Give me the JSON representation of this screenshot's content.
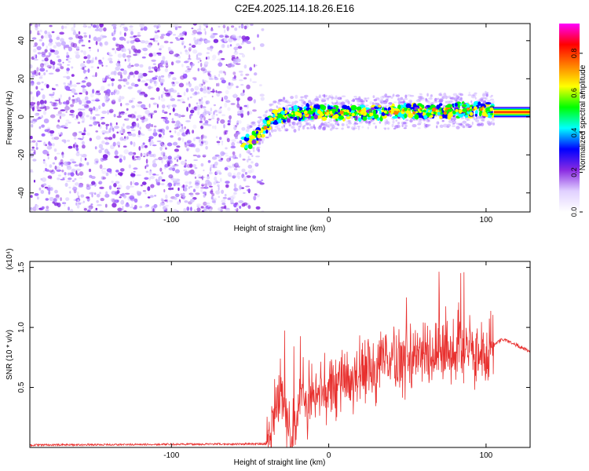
{
  "title": "C2E4.2025.114.18.26.E16",
  "chart_data": [
    {
      "type": "heatmap",
      "xlabel": "Height of straight line (km)",
      "ylabel": "Frequency (Hz)",
      "xlim": [
        -190,
        128
      ],
      "ylim": [
        -50,
        49
      ],
      "xticks": [
        -100,
        0,
        100
      ],
      "yticks": [
        -40,
        -20,
        0,
        20,
        40
      ],
      "colorbar": {
        "label": "Normalized spectral amplitude",
        "range": [
          0,
          0.95
        ],
        "ticks": [
          "0.0",
          "0.2",
          "0.4",
          "0.6",
          "0.8"
        ],
        "colors": [
          "#ffffff",
          "#e0d0ff",
          "#8a2be2",
          "#0000ff",
          "#00ffff",
          "#00ff00",
          "#ffff00",
          "#ff8000",
          "#ff0000",
          "#ff00ff"
        ]
      },
      "noise_region": {
        "x": [
          -190,
          -50
        ],
        "amplitude": 0.15
      },
      "ridge": {
        "x": [
          -55,
          -45,
          -35,
          -25,
          -10,
          0,
          25,
          50,
          75,
          100,
          105,
          128
        ],
        "y": [
          -15,
          -10,
          0,
          1,
          3,
          2,
          2,
          3,
          3,
          4,
          4,
          2
        ]
      },
      "grid": false
    },
    {
      "type": "line",
      "xlabel": "Height of straight line (km)",
      "ylabel": "SNR (10 * v/v)",
      "y_multiplier": "(x10⁴)",
      "xlim": [
        -190,
        128
      ],
      "ylim": [
        0,
        1.55
      ],
      "xticks": [
        -100,
        0,
        100
      ],
      "yticks": [
        0.5,
        1.0,
        1.5
      ],
      "ytick_labels": [
        "0.5",
        "1.0",
        "1.5"
      ],
      "series": [
        {
          "color": "#e8302e",
          "x": [
            -190,
            -40,
            -38,
            -34,
            -30,
            -27,
            -24,
            -22,
            -20,
            -17,
            -14,
            -10,
            -5,
            0,
            10,
            20,
            30,
            40,
            50,
            60,
            70,
            80,
            90,
            95,
            100,
            105,
            110,
            115,
            120,
            128
          ],
          "y": [
            0.02,
            0.03,
            0.1,
            0.3,
            0.45,
            0.2,
            0.05,
            0.15,
            0.3,
            0.35,
            0.35,
            0.4,
            0.45,
            0.5,
            0.55,
            0.6,
            0.65,
            0.7,
            0.75,
            0.78,
            0.8,
            0.82,
            0.8,
            0.82,
            0.8,
            0.85,
            0.9,
            0.88,
            0.85,
            0.8
          ],
          "spike_amplitude": 0.25
        }
      ],
      "grid": false
    }
  ]
}
